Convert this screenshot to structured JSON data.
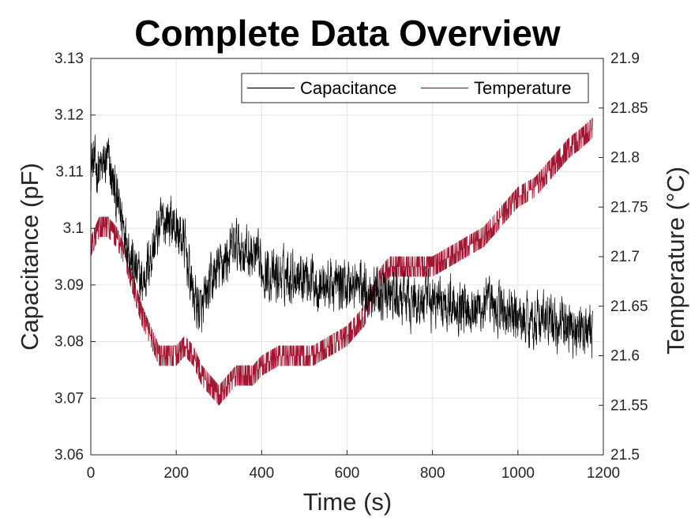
{
  "chart_data": {
    "type": "line",
    "title": "Complete Data Overview",
    "xlabel": "Time (s)",
    "ylabel_left": "Capacitance (pF)",
    "ylabel_right": "Temperature (°C)",
    "xlim": [
      0,
      1200
    ],
    "ylim_left": [
      3.06,
      3.13
    ],
    "ylim_right": [
      21.5,
      21.9
    ],
    "x_ticks": [
      "0",
      "200",
      "400",
      "600",
      "800",
      "1000",
      "1200"
    ],
    "y_ticks_left": [
      "3.06",
      "3.07",
      "3.08",
      "3.09",
      "3.1",
      "3.11",
      "3.12",
      "3.13"
    ],
    "y_ticks_right": [
      "21.5",
      "21.55",
      "21.6",
      "21.65",
      "21.7",
      "21.75",
      "21.8",
      "21.85",
      "21.9"
    ],
    "grid": true,
    "legend_position": "top-right",
    "legend_orientation": "horizontal",
    "x_end": 1175,
    "series": [
      {
        "name": "Capacitance",
        "axis": "left",
        "color": "#000000",
        "trend": {
          "x": [
            0,
            20,
            40,
            60,
            80,
            100,
            120,
            140,
            160,
            180,
            200,
            220,
            240,
            260,
            280,
            300,
            320,
            340,
            360,
            380,
            400,
            430,
            460,
            500,
            540,
            580,
            620,
            660,
            700,
            750,
            800,
            850,
            900,
            950,
            1000,
            1050,
            1100,
            1150,
            1175
          ],
          "y": [
            3.112,
            3.11,
            3.112,
            3.105,
            3.1,
            3.093,
            3.09,
            3.095,
            3.1,
            3.102,
            3.1,
            3.097,
            3.088,
            3.085,
            3.09,
            3.093,
            3.095,
            3.097,
            3.096,
            3.095,
            3.093,
            3.091,
            3.092,
            3.092,
            3.09,
            3.09,
            3.09,
            3.089,
            3.088,
            3.087,
            3.087,
            3.087,
            3.086,
            3.086,
            3.084,
            3.084,
            3.083,
            3.082,
            3.081
          ]
        },
        "noise_amplitude": 0.007
      },
      {
        "name": "Temperature",
        "axis": "right",
        "color": "#a2142f",
        "trend": {
          "x": [
            0,
            20,
            40,
            60,
            80,
            100,
            120,
            140,
            160,
            180,
            200,
            220,
            240,
            260,
            280,
            300,
            320,
            340,
            360,
            380,
            400,
            440,
            480,
            520,
            560,
            600,
            640,
            660,
            680,
            700,
            750,
            800,
            840,
            880,
            920,
            960,
            1000,
            1040,
            1080,
            1120,
            1150,
            1175
          ],
          "y": [
            21.71,
            21.73,
            21.73,
            21.72,
            21.7,
            21.67,
            21.64,
            21.62,
            21.6,
            21.6,
            21.6,
            21.61,
            21.6,
            21.58,
            21.57,
            21.56,
            21.57,
            21.58,
            21.58,
            21.58,
            21.59,
            21.6,
            21.6,
            21.6,
            21.61,
            21.62,
            21.64,
            21.66,
            21.68,
            21.69,
            21.69,
            21.69,
            21.7,
            21.71,
            21.72,
            21.74,
            21.76,
            21.77,
            21.79,
            21.81,
            21.82,
            21.83
          ]
        },
        "noise_amplitude": 0.015
      }
    ]
  }
}
